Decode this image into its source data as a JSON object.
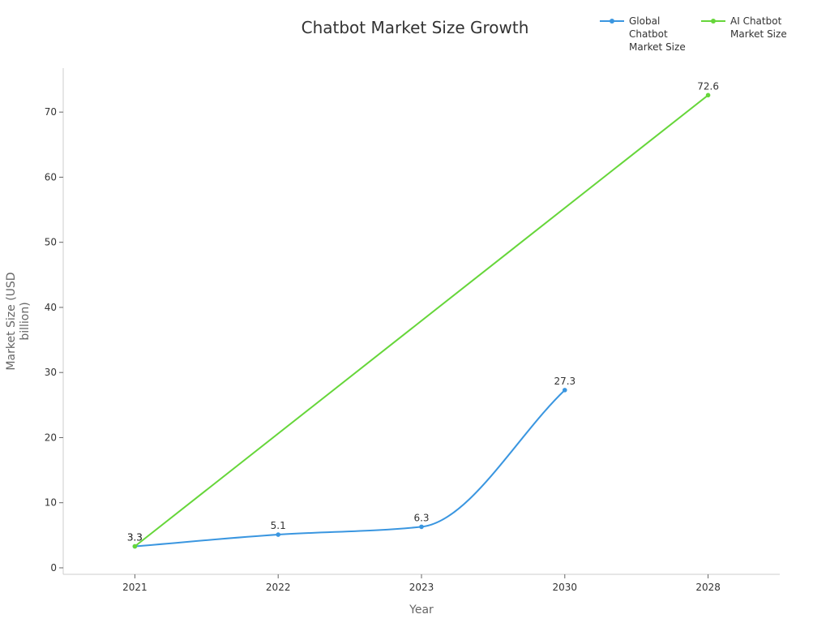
{
  "chart_data": {
    "type": "line",
    "title": "Chatbot Market Size Growth",
    "xlabel": "Year",
    "ylabel": "Market Size (USD billion)",
    "categories": [
      "2021",
      "2022",
      "2023",
      "2030",
      "2028"
    ],
    "ylim": [
      -1,
      76.75
    ],
    "yticks": [
      0,
      10,
      20,
      30,
      40,
      50,
      60,
      70
    ],
    "grid": false,
    "legend_position": "top-right",
    "series": [
      {
        "name": "Global Chatbot Market Size",
        "color": "#3a96e0",
        "smooth": true,
        "points": [
          {
            "x": "2021",
            "y": 3.3
          },
          {
            "x": "2022",
            "y": 5.1
          },
          {
            "x": "2023",
            "y": 6.3
          },
          {
            "x": "2030",
            "y": 27.3
          }
        ]
      },
      {
        "name": "AI Chatbot Market Size",
        "color": "#66d63a",
        "smooth": false,
        "points": [
          {
            "x": "2021",
            "y": 3.3
          },
          {
            "x": "2028",
            "y": 72.6
          }
        ]
      }
    ]
  }
}
